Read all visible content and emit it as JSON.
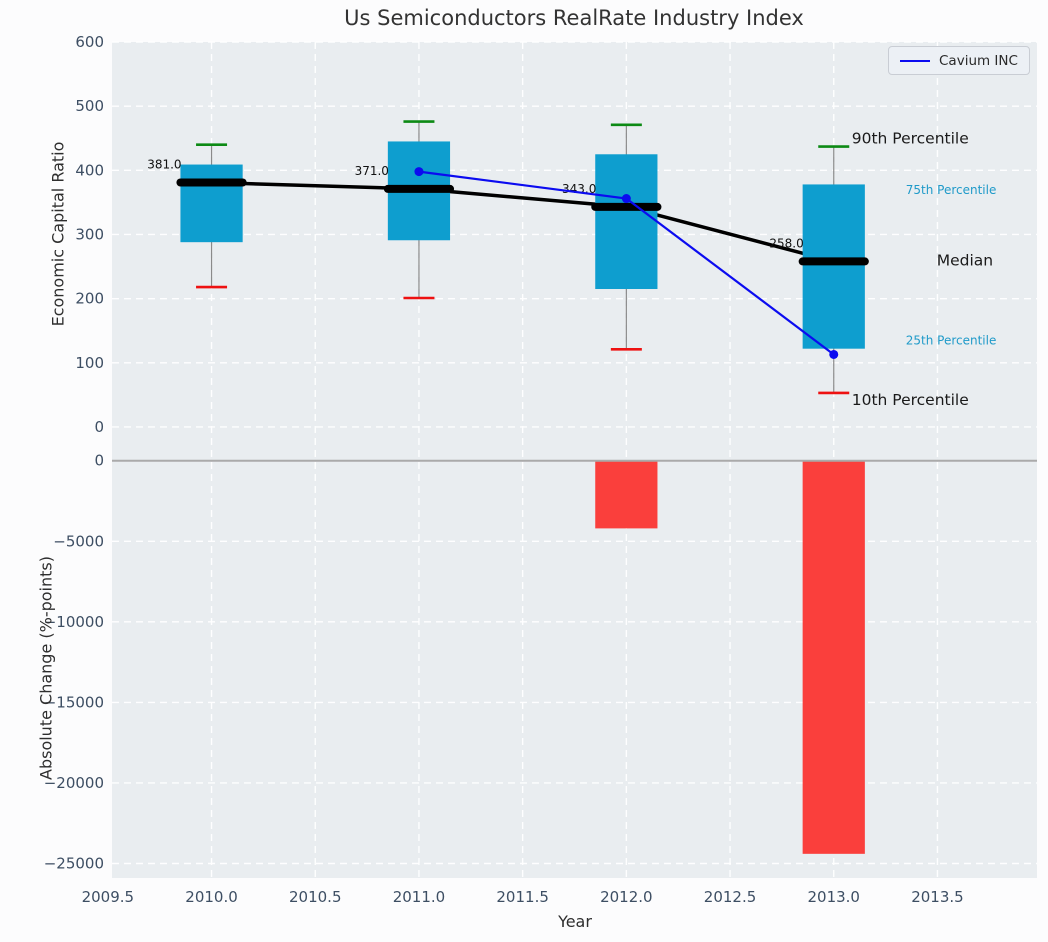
{
  "title": "Us Semiconductors RealRate Industry Index",
  "legend": {
    "label": "Cavium INC"
  },
  "chart_data": {
    "type": "combo-boxplot-line-bar",
    "title": "Us Semiconductors RealRate Industry Index",
    "xlabel": "Year",
    "xlim": [
      2009.52,
      2013.98
    ],
    "x_tick_values": [
      2009.5,
      2010.0,
      2010.5,
      2011.0,
      2011.5,
      2012.0,
      2012.5,
      2013.0,
      2013.5
    ],
    "x_tick_labels": [
      "2009.5",
      "2010.0",
      "2010.5",
      "2011.0",
      "2011.5",
      "2012.0",
      "2012.5",
      "2013.0",
      "2013.5"
    ],
    "grid": true,
    "legend_position": "upper right",
    "top_panel": {
      "ylabel": "Economic Capital Ratio",
      "ylim": [
        -25,
        600
      ],
      "ytick_values": [
        0,
        100,
        200,
        300,
        400,
        500,
        600
      ],
      "ytick_labels": [
        "0",
        "100",
        "200",
        "300",
        "400",
        "500",
        "600"
      ],
      "box_width_years": 0.3,
      "boxes": [
        {
          "year": 2010,
          "p90": 440,
          "p75": 409,
          "median": 381,
          "p25": 288,
          "p10": 218
        },
        {
          "year": 2011,
          "p90": 476,
          "p75": 445,
          "median": 371,
          "p25": 291,
          "p10": 201
        },
        {
          "year": 2012,
          "p90": 471,
          "p75": 425,
          "median": 343,
          "p25": 215,
          "p10": 121
        },
        {
          "year": 2013,
          "p90": 437,
          "p75": 378,
          "median": 258,
          "p25": 122,
          "p10": 53
        }
      ],
      "median_line": {
        "x": [
          2010,
          2011,
          2012,
          2013
        ],
        "y": [
          381,
          371,
          343,
          258
        ]
      },
      "median_labels": [
        "381.0",
        "371.0",
        "343.0",
        "258.0"
      ],
      "series": [
        {
          "name": "Cavium INC",
          "x": [
            2011,
            2012,
            2013
          ],
          "y": [
            398,
            356,
            113
          ]
        }
      ],
      "percentile_annotations": [
        {
          "text": "90th Percentile",
          "style": "big"
        },
        {
          "text": "75th Percentile",
          "style": "small"
        },
        {
          "text": "Median",
          "style": "big"
        },
        {
          "text": "25th Percentile",
          "style": "small"
        },
        {
          "text": "10th Percentile",
          "style": "big"
        }
      ]
    },
    "bottom_panel": {
      "ylabel": "Absolute Change (%-points)",
      "ylim": [
        -25900,
        1100
      ],
      "ytick_values": [
        0,
        -5000,
        -10000,
        -15000,
        -20000,
        -25000
      ],
      "ytick_labels": [
        "0",
        "−5000",
        "−10000",
        "−15000",
        "−20000",
        "−25000"
      ],
      "bars": {
        "x": [
          2012,
          2013
        ],
        "values": [
          -4200,
          -24400
        ],
        "width_years": 0.3
      }
    },
    "colors": {
      "axes_background": "#e9edf0",
      "figure_background": "#fcfcfd",
      "gridline": "#ffffff",
      "box_fill": "#0e9ecf",
      "whisker": "#8a8a8a",
      "cap_90th": "#0c8a14",
      "cap_10th": "#ee1111",
      "median": "#000000",
      "cavium_line": "#0b0bf0",
      "bar_negative": "#fa3f3c",
      "zero_line": "#aaaaaa",
      "tick_text": "#3d4e63",
      "percentile_small_text": "#1f9ac9"
    }
  }
}
